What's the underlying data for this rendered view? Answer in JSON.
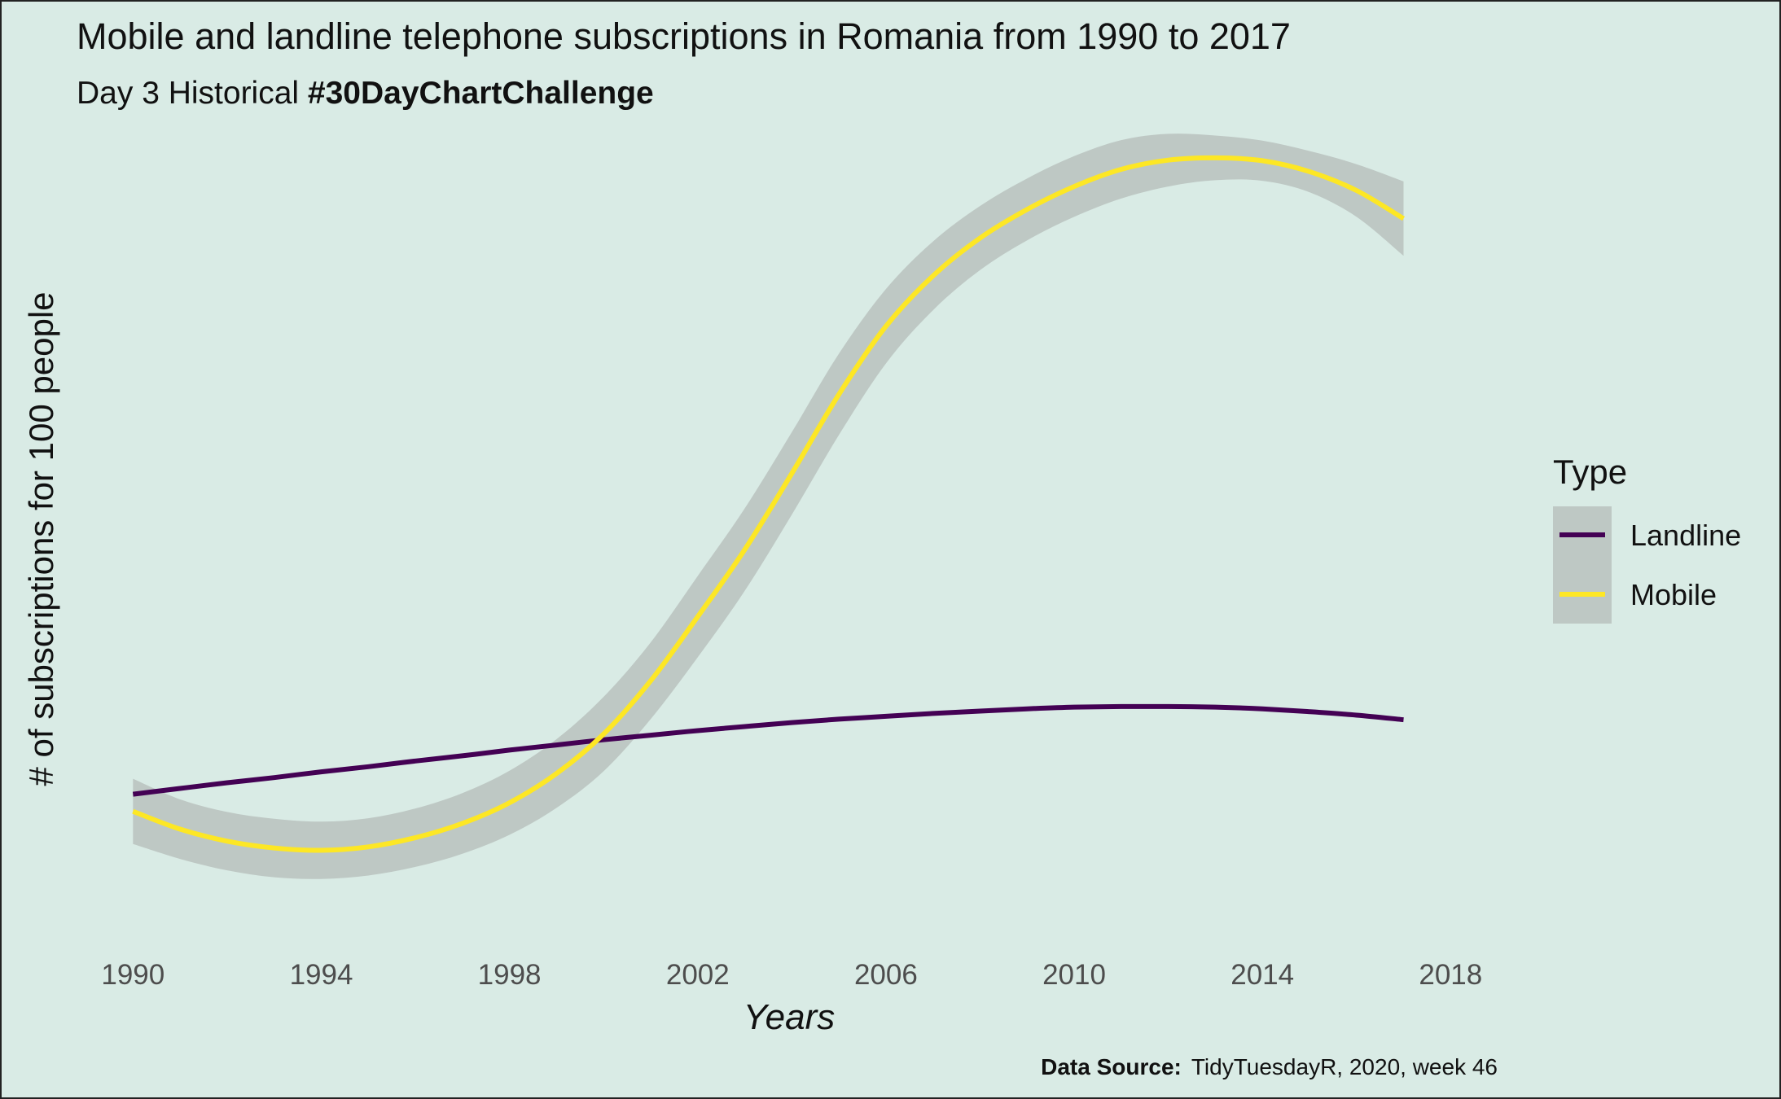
{
  "chart_data": {
    "type": "line",
    "title": "Mobile and landline telephone subscriptions in Romania from 1990 to 2017",
    "subtitle_prefix": "Day 3 Historical ",
    "subtitle_hashtag": "#30DayChartChallenge",
    "xlabel": "Years",
    "ylabel": "# of subscriptions for 100 people",
    "xlim": [
      1988.8,
      2019.5
    ],
    "ylim": [
      -16,
      125
    ],
    "x_ticks": [
      "1990",
      "1994",
      "1998",
      "2002",
      "2006",
      "2010",
      "2014",
      "2018"
    ],
    "y_axis_labels_shown": false,
    "grid": false,
    "smoothed": true,
    "confidence_band": true,
    "legend": {
      "title": "Type",
      "position": "right",
      "entries": [
        "Landline",
        "Mobile"
      ]
    },
    "series": [
      {
        "name": "Landline",
        "color": "#440154",
        "x": [
          1990,
          1991,
          1992,
          1993,
          1994,
          1995,
          1996,
          1997,
          1998,
          1999,
          2000,
          2001,
          2002,
          2003,
          2004,
          2005,
          2006,
          2007,
          2008,
          2009,
          2010,
          2011,
          2012,
          2013,
          2014,
          2015,
          2016,
          2017
        ],
        "y": [
          10.5,
          11.5,
          12.5,
          13.4,
          14.4,
          15.3,
          16.3,
          17.2,
          18.2,
          19.1,
          20.0,
          20.8,
          21.6,
          22.3,
          23.0,
          23.6,
          24.1,
          24.6,
          25.0,
          25.4,
          25.7,
          25.8,
          25.8,
          25.7,
          25.4,
          24.9,
          24.3,
          23.5
        ]
      },
      {
        "name": "Mobile",
        "color": "#fde725",
        "band_color": "#bec8c4",
        "x": [
          1990,
          1991,
          1992,
          1993,
          1994,
          1995,
          1996,
          1997,
          1998,
          1999,
          2000,
          2001,
          2002,
          2003,
          2004,
          2005,
          2006,
          2007,
          2008,
          2009,
          2010,
          2011,
          2012,
          2013,
          2014,
          2015,
          2016,
          2017
        ],
        "y": [
          7.5,
          4.4,
          2.3,
          1.1,
          0.7,
          1.3,
          2.9,
          5.4,
          9.0,
          14.1,
          21.0,
          30.3,
          41.5,
          53.2,
          66.5,
          80.3,
          92.2,
          101.0,
          107.6,
          112.6,
          116.6,
          119.6,
          121.2,
          121.6,
          121.1,
          119.2,
          115.9,
          111.0
        ],
        "lower": [
          1.8,
          -0.8,
          -2.8,
          -4.0,
          -4.3,
          -3.7,
          -2.2,
          0.1,
          3.4,
          8.1,
          14.5,
          23.6,
          34.4,
          46.0,
          59.3,
          73.2,
          85.7,
          95.0,
          102.0,
          107.2,
          111.3,
          114.5,
          116.6,
          117.7,
          117.6,
          115.6,
          111.3,
          104.5
        ],
        "upper": [
          13.2,
          9.6,
          7.4,
          6.2,
          5.7,
          6.3,
          8.0,
          10.7,
          14.6,
          20.1,
          27.5,
          37.0,
          48.6,
          60.4,
          73.7,
          87.4,
          98.7,
          107.0,
          113.2,
          118.0,
          121.9,
          124.7,
          125.8,
          125.5,
          124.6,
          122.8,
          120.5,
          117.5
        ]
      }
    ]
  },
  "caption": {
    "label": "Data Source:",
    "text": "TidyTuesdayR,  2020, week 46"
  }
}
